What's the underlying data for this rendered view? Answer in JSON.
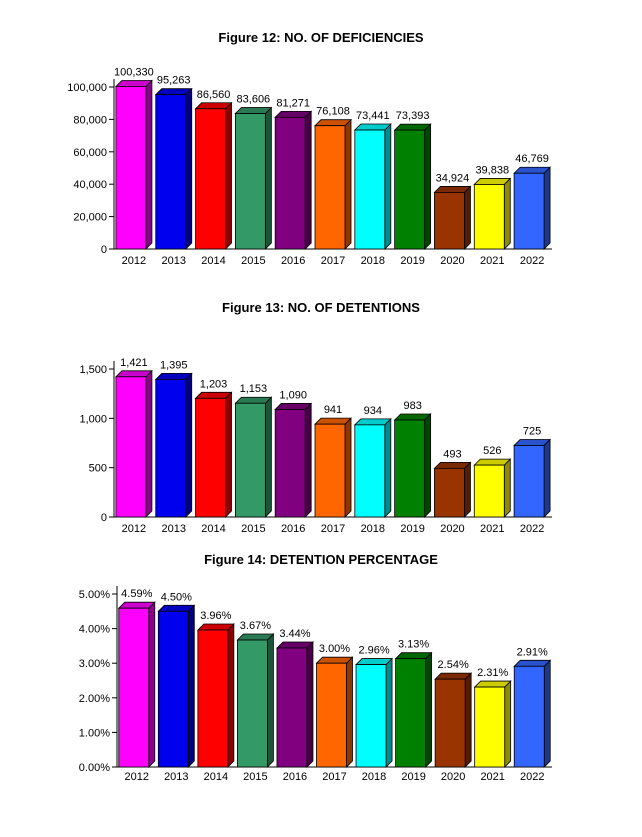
{
  "chart_data": [
    {
      "type": "bar",
      "title": "Figure 12: NO. OF DEFICIENCIES",
      "categories": [
        "2012",
        "2013",
        "2014",
        "2015",
        "2016",
        "2017",
        "2018",
        "2019",
        "2020",
        "2021",
        "2022"
      ],
      "values": [
        100330,
        95263,
        86560,
        83606,
        81271,
        76108,
        73441,
        73393,
        34924,
        39838,
        46769
      ],
      "data_labels": [
        "100,330",
        "95,263",
        "86,560",
        "83,606",
        "81,271",
        "76,108",
        "73,441",
        "73,393",
        "34,924",
        "39,838",
        "46,769"
      ],
      "yticks": [
        0,
        20000,
        40000,
        60000,
        80000,
        100000
      ],
      "ytick_labels": [
        "0",
        "20,000",
        "40,000",
        "60,000",
        "80,000",
        "100,000"
      ],
      "ylim": [
        0,
        100000
      ],
      "xlabel": "",
      "ylabel": "",
      "grid": false
    },
    {
      "type": "bar",
      "title": "Figure 13: NO. OF DETENTIONS",
      "categories": [
        "2012",
        "2013",
        "2014",
        "2015",
        "2016",
        "2017",
        "2018",
        "2019",
        "2020",
        "2021",
        "2022"
      ],
      "values": [
        1421,
        1395,
        1203,
        1153,
        1090,
        941,
        934,
        983,
        493,
        526,
        725
      ],
      "data_labels": [
        "1,421",
        "1,395",
        "1,203",
        "1,153",
        "1,090",
        "941",
        "934",
        "983",
        "493",
        "526",
        "725"
      ],
      "yticks": [
        0,
        500,
        1000,
        1500
      ],
      "ytick_labels": [
        "0",
        "500",
        "1,000",
        "1,500"
      ],
      "ylim": [
        0,
        1500
      ],
      "xlabel": "",
      "ylabel": "",
      "grid": false
    },
    {
      "type": "bar",
      "title": "Figure 14: DETENTION PERCENTAGE",
      "categories": [
        "2012",
        "2013",
        "2014",
        "2015",
        "2016",
        "2017",
        "2018",
        "2019",
        "2020",
        "2021",
        "2022"
      ],
      "values": [
        4.59,
        4.5,
        3.96,
        3.67,
        3.44,
        3.0,
        2.96,
        3.13,
        2.54,
        2.31,
        2.91
      ],
      "data_labels": [
        "4.59%",
        "4.50%",
        "3.96%",
        "3.67%",
        "3.44%",
        "3.00%",
        "2.96%",
        "3.13%",
        "2.54%",
        "2.31%",
        "2.91%"
      ],
      "yticks": [
        0,
        1,
        2,
        3,
        4,
        5
      ],
      "ytick_labels": [
        "0.00%",
        "1.00%",
        "2.00%",
        "3.00%",
        "4.00%",
        "5.00%"
      ],
      "ylim": [
        0,
        5
      ],
      "xlabel": "",
      "ylabel": "",
      "grid": false
    }
  ],
  "bar_colors": [
    "#ff00ff",
    "#0000ee",
    "#ff0000",
    "#339966",
    "#800080",
    "#ff6600",
    "#00ffff",
    "#008000",
    "#993300",
    "#ffff00",
    "#3366ff"
  ]
}
